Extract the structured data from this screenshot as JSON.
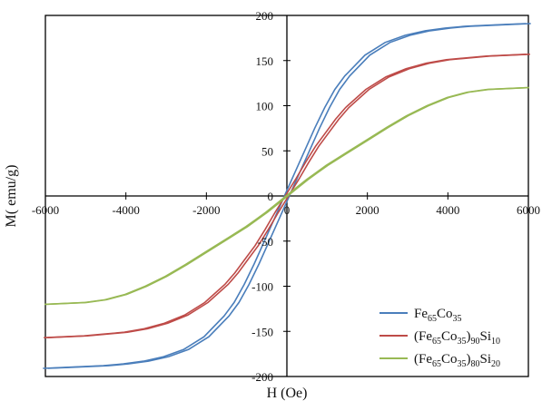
{
  "chart_data": {
    "type": "line",
    "title": "",
    "xlabel": "H (Oe)",
    "ylabel": "M( emu/g)",
    "xlim": [
      -6000,
      6000
    ],
    "ylim": [
      -200,
      200
    ],
    "x_ticks": [
      -6000,
      -4000,
      -2000,
      0,
      2000,
      4000,
      6000
    ],
    "y_ticks": [
      -200,
      -150,
      -100,
      -50,
      0,
      50,
      100,
      150,
      200
    ],
    "x_tick_labels": [
      "-6000",
      "-4000",
      "-2000",
      "0",
      "2000",
      "4000",
      "6000"
    ],
    "y_tick_labels": [
      "-200",
      "-150",
      "-100",
      "-50",
      "0",
      "50",
      "100",
      "150",
      "200"
    ],
    "grid": false,
    "legend_position": "bottom-right",
    "series": [
      {
        "name": "Fe65Co35",
        "legend": {
          "parts": [
            [
              "Fe",
              ""
            ],
            [
              "65",
              "sub"
            ],
            [
              "Co",
              ""
            ],
            [
              "35",
              "sub"
            ]
          ]
        },
        "color": "#4a7ebb",
        "hysteresis_offset": 60,
        "x": [
          0,
          250,
          500,
          750,
          1000,
          1250,
          1500,
          2000,
          2500,
          3000,
          3500,
          4000,
          4500,
          5000,
          5500,
          6000
        ],
        "y": [
          0,
          25,
          50,
          75,
          98,
          118,
          133,
          156,
          170,
          178,
          183,
          186,
          188,
          189,
          190,
          191
        ]
      },
      {
        "name": "(Fe65Co35)90Si10",
        "legend": {
          "parts": [
            [
              "(Fe",
              ""
            ],
            [
              "65",
              "sub"
            ],
            [
              "Co",
              ""
            ],
            [
              "35",
              "sub"
            ],
            [
              ")",
              ""
            ],
            [
              "90",
              "sub"
            ],
            [
              "Si",
              ""
            ],
            [
              "10",
              "sub"
            ]
          ]
        },
        "color": "#be4b48",
        "hysteresis_offset": 40,
        "x": [
          0,
          250,
          500,
          750,
          1000,
          1250,
          1500,
          2000,
          2500,
          3000,
          3500,
          4000,
          4500,
          5000,
          5500,
          6000
        ],
        "y": [
          0,
          18,
          37,
          55,
          70,
          85,
          98,
          118,
          132,
          141,
          147,
          151,
          153,
          155,
          156,
          157
        ]
      },
      {
        "name": "(Fe65Co35)80Si20",
        "legend": {
          "parts": [
            [
              "(Fe",
              ""
            ],
            [
              "65",
              "sub"
            ],
            [
              "Co",
              ""
            ],
            [
              "35",
              "sub"
            ],
            [
              ")",
              ""
            ],
            [
              "80",
              "sub"
            ],
            [
              "Si",
              ""
            ],
            [
              "20",
              "sub"
            ]
          ]
        },
        "color": "#98b954",
        "hysteresis_offset": 20,
        "x": [
          0,
          250,
          500,
          750,
          1000,
          1250,
          1500,
          2000,
          2500,
          3000,
          3500,
          4000,
          4500,
          5000,
          5500,
          6000
        ],
        "y": [
          0,
          9,
          18,
          26,
          34,
          41,
          48,
          62,
          76,
          89,
          100,
          109,
          115,
          118,
          119,
          120
        ]
      }
    ]
  }
}
